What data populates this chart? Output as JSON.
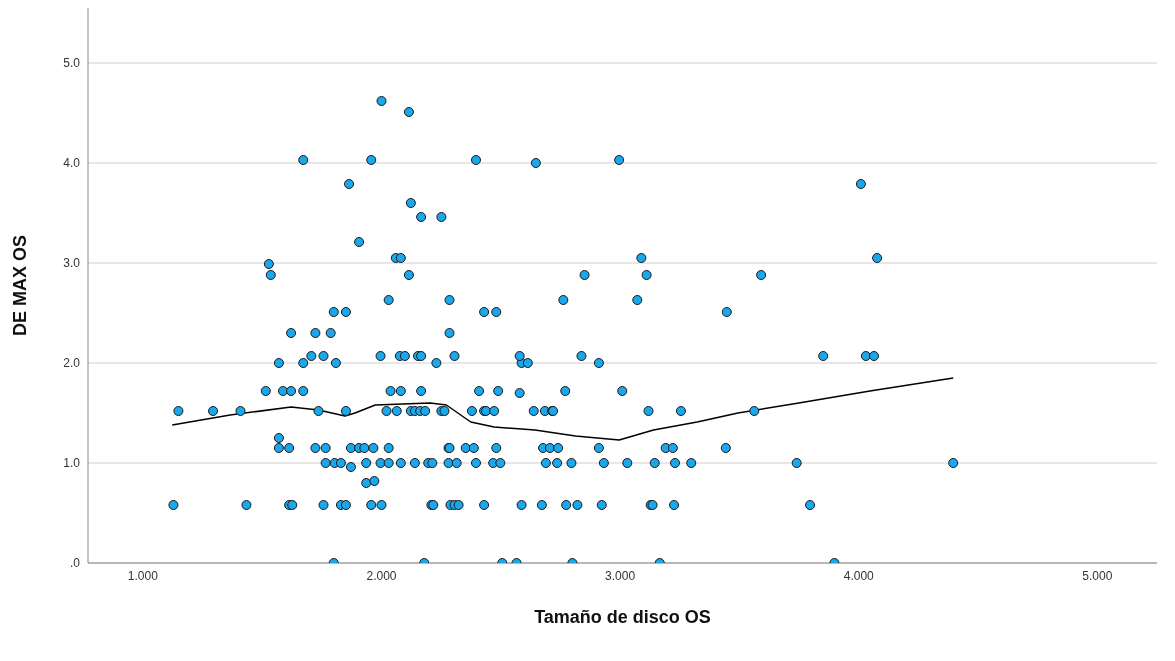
{
  "chart_data": {
    "type": "scatter",
    "xlabel": "Tamaño de disco OS",
    "ylabel": "DE MAX OS",
    "xlim": [
      0.77,
      5.25
    ],
    "xticks": [
      {
        "value": 1,
        "label": "1.000"
      },
      {
        "value": 2,
        "label": "2.000"
      },
      {
        "value": 3,
        "label": "3.000"
      },
      {
        "value": 4,
        "label": "4.000"
      },
      {
        "value": 5,
        "label": "5.000"
      }
    ],
    "ylim": [
      0,
      5.55
    ],
    "yticks": [
      {
        "value": 0,
        "label": ".0"
      },
      {
        "value": 1,
        "label": "1.0"
      },
      {
        "value": 2,
        "label": "2.0"
      },
      {
        "value": 3,
        "label": "3.0"
      },
      {
        "value": 4,
        "label": "4.0"
      },
      {
        "value": 5,
        "label": "5.0"
      }
    ],
    "grid": "y",
    "marker": "circle",
    "series": [
      {
        "color": "#1aa7ec",
        "x": [
          1.128,
          1.434,
          1.613,
          1.626,
          1.757,
          1.83,
          1.851,
          1.957,
          2.0,
          2.209,
          2.217,
          2.289,
          2.306,
          2.323,
          2.43,
          2.587,
          2.672,
          2.774,
          2.821,
          2.923,
          3.128,
          3.136,
          3.226,
          3.796,
          1.8,
          2.179,
          2.506,
          2.566,
          2.8,
          3.166,
          3.898,
          1.936,
          1.97,
          1.872,
          1.766,
          1.804,
          1.83,
          1.936,
          1.996,
          2.03,
          2.081,
          2.14,
          2.196,
          2.213,
          2.281,
          2.315,
          2.396,
          2.468,
          2.498,
          2.689,
          2.736,
          2.796,
          2.932,
          3.03,
          3.145,
          3.23,
          3.298,
          3.74,
          4.396,
          1.57,
          1.613,
          1.723,
          1.766,
          1.872,
          1.906,
          1.928,
          1.966,
          2.03,
          2.281,
          2.285,
          2.353,
          2.387,
          2.481,
          2.677,
          2.706,
          2.74,
          2.911,
          3.191,
          3.221,
          3.443,
          1.57,
          1.149,
          1.294,
          1.409,
          1.736,
          1.851,
          2.021,
          2.064,
          2.123,
          2.14,
          2.162,
          2.183,
          2.251,
          2.264,
          2.379,
          2.43,
          2.438,
          2.472,
          2.638,
          2.685,
          2.715,
          2.719,
          3.119,
          3.255,
          3.562,
          1.515,
          1.587,
          1.621,
          1.672,
          2.038,
          2.081,
          2.166,
          2.409,
          2.489,
          2.579,
          2.77,
          3.009,
          1.57,
          1.672,
          1.809,
          2.23,
          2.587,
          2.613,
          2.911,
          1.706,
          1.757,
          1.996,
          2.077,
          2.098,
          2.153,
          2.166,
          2.306,
          2.579,
          2.838,
          3.851,
          4.03,
          4.064,
          1.621,
          1.723,
          1.787,
          2.285,
          1.8,
          1.851,
          2.43,
          2.481,
          3.447,
          2.03,
          2.285,
          2.762,
          3.072,
          1.536,
          2.115,
          2.851,
          3.111,
          3.591,
          1.528,
          2.06,
          2.081,
          3.089,
          4.077,
          1.906,
          2.166,
          2.251,
          2.123,
          1.864,
          4.009,
          1.672,
          1.957,
          2.396,
          2.996,
          2.647,
          2.115,
          2.0
        ],
        "values": [
          0.58,
          0.58,
          0.58,
          0.58,
          0.58,
          0.58,
          0.58,
          0.58,
          0.58,
          0.58,
          0.58,
          0.58,
          0.58,
          0.58,
          0.58,
          0.58,
          0.58,
          0.58,
          0.58,
          0.58,
          0.58,
          0.58,
          0.58,
          0.58,
          0,
          0,
          0,
          0,
          0,
          0,
          0,
          0.8,
          0.82,
          0.96,
          1.0,
          1.0,
          1.0,
          1.0,
          1.0,
          1.0,
          1.0,
          1.0,
          1.0,
          1.0,
          1.0,
          1.0,
          1.0,
          1.0,
          1.0,
          1.0,
          1.0,
          1.0,
          1.0,
          1.0,
          1.0,
          1.0,
          1.0,
          1.0,
          1.0,
          1.15,
          1.15,
          1.15,
          1.15,
          1.15,
          1.15,
          1.15,
          1.15,
          1.15,
          1.15,
          1.15,
          1.15,
          1.15,
          1.15,
          1.15,
          1.15,
          1.15,
          1.15,
          1.15,
          1.15,
          1.15,
          1.25,
          1.52,
          1.52,
          1.52,
          1.52,
          1.52,
          1.52,
          1.52,
          1.52,
          1.52,
          1.52,
          1.52,
          1.52,
          1.52,
          1.52,
          1.52,
          1.52,
          1.52,
          1.52,
          1.52,
          1.52,
          1.52,
          1.52,
          1.52,
          1.52,
          1.72,
          1.72,
          1.72,
          1.72,
          1.72,
          1.72,
          1.72,
          1.72,
          1.72,
          1.7,
          1.72,
          1.72,
          2.0,
          2.0,
          2.0,
          2.0,
          2.0,
          2.0,
          2.0,
          2.07,
          2.07,
          2.07,
          2.07,
          2.07,
          2.07,
          2.07,
          2.07,
          2.07,
          2.07,
          2.07,
          2.07,
          2.07,
          2.3,
          2.3,
          2.3,
          2.3,
          2.51,
          2.51,
          2.51,
          2.51,
          2.51,
          2.63,
          2.63,
          2.63,
          2.63,
          2.88,
          2.88,
          2.88,
          2.88,
          2.88,
          2.99,
          3.05,
          3.05,
          3.05,
          3.05,
          3.21,
          3.46,
          3.46,
          3.6,
          3.79,
          3.79,
          4.03,
          4.03,
          4.03,
          4.03,
          4.0,
          4.51,
          4.62
        ]
      },
      {
        "type": "line",
        "color": "#000000",
        "marker": "none",
        "x": [
          1.123,
          1.366,
          1.621,
          1.736,
          1.847,
          1.889,
          1.974,
          2.089,
          2.204,
          2.272,
          2.374,
          2.472,
          2.643,
          2.813,
          2.996,
          3.14,
          3.323,
          3.494,
          3.749,
          4.047,
          4.396
        ],
        "values": [
          1.38,
          1.48,
          1.56,
          1.53,
          1.47,
          1.5,
          1.58,
          1.59,
          1.6,
          1.58,
          1.41,
          1.36,
          1.33,
          1.27,
          1.23,
          1.33,
          1.41,
          1.5,
          1.6,
          1.72,
          1.85
        ]
      }
    ]
  }
}
